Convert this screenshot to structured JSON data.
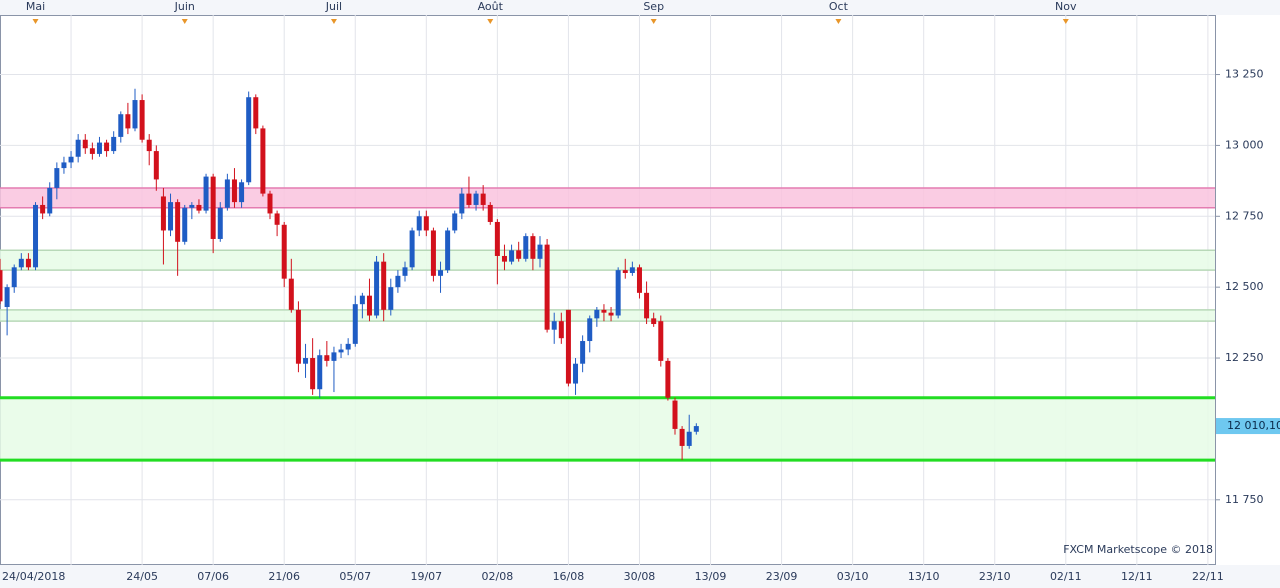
{
  "chart_data": {
    "type": "candlestick",
    "watermark": "FXCM Marketscope © 2018",
    "up_color": "#1f5cc4",
    "down_color": "#d2111c",
    "xlim": [
      -10,
      161
    ],
    "ylim": [
      11520,
      13460
    ],
    "xticks": [
      {
        "value": 0,
        "label": "24/04/2018"
      },
      {
        "value": 10,
        "label": "24/05"
      },
      {
        "value": 20,
        "label": "07/06"
      },
      {
        "value": 30,
        "label": "21/06"
      },
      {
        "value": 40,
        "label": "05/07"
      },
      {
        "value": 50,
        "label": "19/07"
      },
      {
        "value": 60,
        "label": "02/08"
      },
      {
        "value": 70,
        "label": "16/08"
      },
      {
        "value": 80,
        "label": "30/08"
      },
      {
        "value": 90,
        "label": "13/09"
      },
      {
        "value": 100,
        "label": "23/09"
      },
      {
        "value": 110,
        "label": "03/10"
      },
      {
        "value": 120,
        "label": "13/10"
      },
      {
        "value": 130,
        "label": "23/10"
      },
      {
        "value": 140,
        "label": "02/11"
      },
      {
        "value": 150,
        "label": "12/11"
      },
      {
        "value": 160,
        "label": "22/11"
      }
    ],
    "yticks": [
      {
        "value": 11750,
        "label": "11 750"
      },
      {
        "value": 12250,
        "label": "12 250"
      },
      {
        "value": 12500,
        "label": "12 500"
      },
      {
        "value": 12750,
        "label": "12 750"
      },
      {
        "value": 13000,
        "label": "13 000"
      },
      {
        "value": 13250,
        "label": "13 250"
      }
    ],
    "months": [
      {
        "value": -5,
        "label": "Mai"
      },
      {
        "value": 16,
        "label": "Juin"
      },
      {
        "value": 37,
        "label": "Juil"
      },
      {
        "value": 59,
        "label": "Août"
      },
      {
        "value": 82,
        "label": "Sep"
      },
      {
        "value": 108,
        "label": "Oct"
      },
      {
        "value": 140,
        "label": "Nov"
      }
    ],
    "bands": [
      {
        "from": 12780,
        "to": 12850,
        "color": "#f9c3de",
        "edge": "#e47cb1"
      },
      {
        "from": 12560,
        "to": 12630,
        "color": "#e6fbe6",
        "edge": "#b8d8b8"
      },
      {
        "from": 12380,
        "to": 12420,
        "color": "#e6fbe6",
        "edge": "#b8d8b8"
      },
      {
        "from": 11890,
        "to": 12110,
        "color": "#e6fbe6",
        "edge": "#22dd22"
      }
    ],
    "last_price": {
      "value": 12010.1,
      "label": "12 010,10"
    },
    "x": [
      -10,
      -9,
      -8,
      -7,
      -6,
      -5,
      -4,
      -3,
      -2,
      -1,
      0,
      1,
      2,
      3,
      4,
      5,
      6,
      7,
      8,
      9,
      10,
      11,
      12,
      13,
      14,
      15,
      16,
      17,
      18,
      19,
      20,
      21,
      22,
      23,
      24,
      25,
      26,
      27,
      28,
      29,
      30,
      31,
      32,
      33,
      34,
      35,
      36,
      37,
      38,
      39,
      40,
      41,
      42,
      43,
      44,
      45,
      46,
      47,
      48,
      49,
      50,
      51,
      52,
      53,
      54,
      55,
      56,
      57,
      58,
      59,
      60,
      61,
      62,
      63,
      64,
      65,
      66,
      67,
      68,
      69,
      70,
      71,
      72,
      73,
      74,
      75,
      76,
      77,
      78,
      79,
      80,
      81,
      82,
      83,
      84,
      85,
      86,
      87,
      88
    ],
    "open": [
      12560,
      12430,
      12500,
      12570,
      12600,
      12570,
      12790,
      12760,
      12850,
      12920,
      12940,
      12960,
      13020,
      12990,
      12970,
      13010,
      12980,
      13030,
      13110,
      13060,
      13160,
      13020,
      12980,
      12820,
      12700,
      12800,
      12660,
      12780,
      12790,
      12770,
      12890,
      12670,
      12780,
      12880,
      12800,
      12870,
      13170,
      13060,
      12830,
      12760,
      12720,
      12530,
      12420,
      12230,
      12250,
      12140,
      12260,
      12240,
      12270,
      12280,
      12300,
      12440,
      12470,
      12400,
      12590,
      12420,
      12500,
      12540,
      12570,
      12700,
      12750,
      12700,
      12540,
      12560,
      12700,
      12760,
      12830,
      12790,
      12830,
      12790,
      12730,
      12610,
      12590,
      12630,
      12600,
      12680,
      12600,
      12650,
      12350,
      12380,
      12420,
      12160,
      12230,
      12310,
      12390,
      12420,
      12410,
      12400,
      12560,
      12550,
      12570,
      12480,
      12390,
      12380,
      12240,
      12100,
      12000,
      11940,
      11990
    ],
    "high": [
      12600,
      12510,
      12580,
      12620,
      12620,
      12800,
      12820,
      12870,
      12940,
      12960,
      12980,
      13040,
      13040,
      13010,
      13030,
      13020,
      13050,
      13120,
      13150,
      13200,
      13180,
      13040,
      13000,
      12850,
      12830,
      12810,
      12790,
      12800,
      12810,
      12900,
      12900,
      12800,
      12900,
      12920,
      12880,
      13190,
      13180,
      13070,
      12840,
      12770,
      12730,
      12600,
      12450,
      12300,
      12320,
      12280,
      12310,
      12290,
      12300,
      12320,
      12470,
      12480,
      12530,
      12610,
      12620,
      12530,
      12560,
      12590,
      12710,
      12770,
      12770,
      12710,
      12590,
      12710,
      12770,
      12850,
      12890,
      12840,
      12860,
      12800,
      12740,
      12650,
      12650,
      12660,
      12690,
      12690,
      12680,
      12670,
      12410,
      12410,
      12420,
      12250,
      12330,
      12400,
      12430,
      12440,
      12430,
      12570,
      12600,
      12590,
      12580,
      12520,
      12410,
      12400,
      12250,
      12110,
      12010,
      12050,
      12020
    ],
    "low": [
      12440,
      12330,
      12480,
      12560,
      12560,
      12560,
      12740,
      12750,
      12810,
      12900,
      12920,
      12940,
      12970,
      12950,
      12960,
      12960,
      12970,
      13010,
      13040,
      13050,
      13010,
      12930,
      12840,
      12580,
      12680,
      12540,
      12650,
      12740,
      12760,
      12760,
      12620,
      12660,
      12770,
      12780,
      12780,
      12860,
      13040,
      12820,
      12740,
      12680,
      12500,
      12410,
      12200,
      12180,
      12120,
      12110,
      12220,
      12130,
      12250,
      12260,
      12290,
      12390,
      12380,
      12390,
      12380,
      12400,
      12480,
      12520,
      12560,
      12680,
      12680,
      12520,
      12480,
      12550,
      12690,
      12740,
      12780,
      12770,
      12770,
      12720,
      12510,
      12560,
      12580,
      12590,
      12590,
      12560,
      12570,
      12340,
      12300,
      12300,
      12150,
      12120,
      12200,
      12270,
      12360,
      12380,
      12380,
      12390,
      12530,
      12540,
      12460,
      12370,
      12360,
      12220,
      12100,
      11980,
      11890,
      11930,
      11980
    ],
    "close": [
      12450,
      12500,
      12570,
      12600,
      12570,
      12790,
      12760,
      12850,
      12920,
      12940,
      12960,
      13020,
      12990,
      12970,
      13010,
      12980,
      13030,
      13110,
      13060,
      13160,
      13020,
      12980,
      12880,
      12700,
      12800,
      12660,
      12780,
      12790,
      12770,
      12890,
      12670,
      12780,
      12880,
      12800,
      12870,
      13170,
      13060,
      12830,
      12760,
      12720,
      12530,
      12420,
      12230,
      12250,
      12140,
      12260,
      12240,
      12270,
      12280,
      12300,
      12440,
      12470,
      12400,
      12590,
      12420,
      12500,
      12540,
      12570,
      12700,
      12750,
      12700,
      12540,
      12560,
      12700,
      12760,
      12830,
      12790,
      12830,
      12790,
      12730,
      12610,
      12590,
      12630,
      12600,
      12680,
      12600,
      12650,
      12350,
      12380,
      12320,
      12160,
      12230,
      12310,
      12390,
      12420,
      12410,
      12400,
      12560,
      12550,
      12570,
      12480,
      12390,
      12370,
      12240,
      12110,
      12000,
      11940,
      11990,
      12010
    ]
  }
}
